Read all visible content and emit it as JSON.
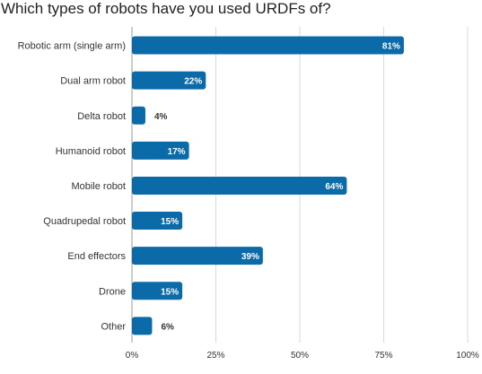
{
  "chart_data": {
    "type": "bar",
    "orientation": "horizontal",
    "title": "Which types of robots have you used URDFs of?",
    "categories": [
      "Robotic arm (single arm)",
      "Dual arm robot",
      "Delta robot",
      "Humanoid robot",
      "Mobile robot",
      "Quadrupedal robot",
      "End effectors",
      "Drone",
      "Other"
    ],
    "values": [
      81,
      22,
      4,
      17,
      64,
      15,
      39,
      15,
      6
    ],
    "value_labels": [
      "81%",
      "22%",
      "4%",
      "17%",
      "64%",
      "15%",
      "39%",
      "15%",
      "6%"
    ],
    "xlim": [
      0,
      100
    ],
    "xticks": [
      0,
      25,
      50,
      75,
      100
    ],
    "xtick_labels": [
      "0%",
      "25%",
      "50%",
      "75%",
      "100%"
    ],
    "grid": "vertical",
    "bar_color": "#0b6aa8",
    "grid_color": "#d9d9d9"
  }
}
